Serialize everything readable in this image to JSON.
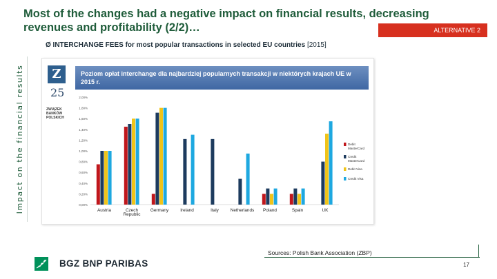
{
  "slide": {
    "headline": "Most of the changes had a negative impact on financial results, decreasing revenues and profitability (2/2)…",
    "alt_badge": "ALTERNATIVE 2",
    "side_label": "Impact on the financial results",
    "subtitle_prefix": "Ø INTERCHANGE FEES for most popular transactions in selected EU countries",
    "subtitle_year": "[2015]",
    "sources": "Sources: Polish Bank Association (ZBP)",
    "page_number": "17"
  },
  "embedded_logo": {
    "mark": "Z",
    "number": "25",
    "line1": "ZWIĄZEK",
    "line2": "BANKÓW",
    "line3": "POLSKICH"
  },
  "brand": {
    "name": "BGZ BNP PARIBAS",
    "logo_icon": "stars-square-icon",
    "colors": {
      "green": "#00915a",
      "dark_green": "#1f5c3a",
      "red": "#d7301f"
    }
  },
  "chart_data": {
    "type": "bar",
    "title": "Poziom opłat interchange dla najbardziej popularnych transakcji w niektórych krajach UE w 2015 r.",
    "categories": [
      "Austria",
      "Czech Republic",
      "Germany",
      "Ireland",
      "Italy",
      "Netherlands",
      "Poland",
      "Spain",
      "UK"
    ],
    "ylim": [
      0,
      2.0
    ],
    "yticks": [
      "0,00%",
      "0,20%",
      "0,40%",
      "0,60%",
      "0,80%",
      "1,00%",
      "1,20%",
      "1,40%",
      "1,60%",
      "1,80%",
      "2,00%"
    ],
    "series": [
      {
        "name": "Debit MasterCard",
        "color": "#c0171c",
        "values": [
          0.75,
          1.45,
          0.2,
          null,
          null,
          null,
          0.2,
          0.2,
          null
        ]
      },
      {
        "name": "Credit MasterCard",
        "color": "#1d3b5e",
        "values": [
          1.0,
          1.5,
          1.71,
          1.22,
          1.22,
          0.48,
          0.3,
          0.3,
          0.8
        ]
      },
      {
        "name": "Debit Visa",
        "color": "#f0c419",
        "values": [
          1.0,
          1.6,
          1.8,
          null,
          null,
          null,
          0.2,
          0.2,
          1.32
        ]
      },
      {
        "name": "Credit Visa",
        "color": "#1ea8e0",
        "values": [
          1.0,
          1.6,
          1.8,
          1.3,
          null,
          0.95,
          0.3,
          0.3,
          1.55
        ]
      }
    ],
    "legend_labels": [
      [
        "Debit",
        "MasterCard"
      ],
      [
        "Credit",
        "MasterCard"
      ],
      [
        "Debit Visa"
      ],
      [
        "Credit Visa"
      ]
    ],
    "category_labels": [
      [
        "Austria"
      ],
      [
        "Czech",
        "Republic"
      ],
      [
        "Germany"
      ],
      [
        "Ireland"
      ],
      [
        "Italy"
      ],
      [
        "Netherlands"
      ],
      [
        "Poland"
      ],
      [
        "Spain"
      ],
      [
        "UK"
      ]
    ],
    "legend_position": "right",
    "grid": false
  }
}
